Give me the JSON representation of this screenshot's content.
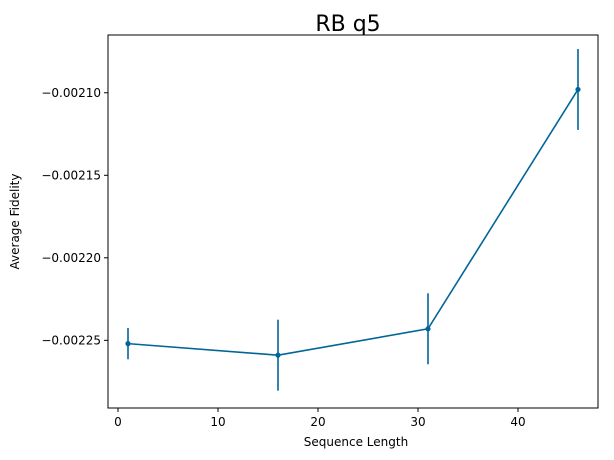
{
  "chart_data": {
    "type": "line",
    "title": "RB q5",
    "xlabel": "Sequence Length",
    "ylabel": "Average Fidelity",
    "xlim": [
      -1,
      48
    ],
    "ylim": [
      -0.002291,
      -0.002065
    ],
    "xticks": [
      0,
      10,
      20,
      30,
      40
    ],
    "xtick_labels": [
      "0",
      "10",
      "20",
      "30",
      "40"
    ],
    "yticks": [
      -0.00225,
      -0.0022,
      -0.00215,
      -0.0021
    ],
    "ytick_labels": [
      "−0.00225",
      "−0.00220",
      "−0.00215",
      "−0.00210"
    ],
    "grid": false,
    "series": [
      {
        "color": "#006699",
        "x": [
          1,
          16,
          31,
          46
        ],
        "y": [
          -0.002252,
          -0.002259,
          -0.002243,
          -0.002098
        ],
        "yerr": [
          9.5e-06,
          2.15e-05,
          2.15e-05,
          2.45e-05
        ]
      }
    ]
  }
}
